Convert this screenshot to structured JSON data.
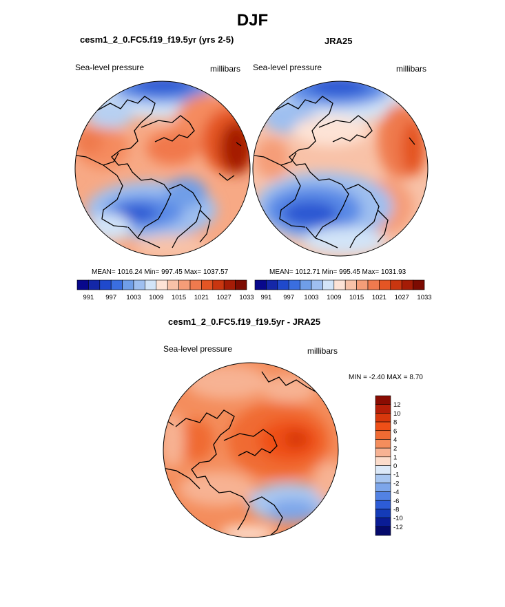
{
  "page": {
    "main_title": "DJF",
    "top_left_title": "cesm1_2_0.FC5.f19_f19.5yr (yrs 2-5)",
    "top_right_title": "JRA25",
    "bottom_title": "cesm1_2_0.FC5.f19_f19.5yr - JRA25"
  },
  "panels": {
    "model": {
      "variable": "Sea-level pressure",
      "units": "millibars",
      "stats": "MEAN= 1016.24  Min= 997.45  Max= 1037.57"
    },
    "obs": {
      "variable": "Sea-level pressure",
      "units": "millibars",
      "stats": "MEAN= 1012.71  Min= 995.45  Max= 1031.93"
    },
    "diff": {
      "variable": "Sea-level pressure",
      "units": "millibars",
      "stats": "MIN =  -2.40 MAX =   8.70"
    }
  },
  "colorbars": {
    "abs": {
      "labels": [
        "991",
        "997",
        "1003",
        "1009",
        "1015",
        "1021",
        "1027",
        "1033"
      ],
      "colors": [
        "#08088c",
        "#1427a8",
        "#1f49cc",
        "#3a6ee0",
        "#6f9ee8",
        "#9ebff0",
        "#d2e4f8",
        "#fde3d6",
        "#f8c2a8",
        "#f59d78",
        "#ef7a4e",
        "#e45524",
        "#c93610",
        "#a51c06",
        "#7c0b02"
      ]
    },
    "diff": {
      "labels": [
        "12",
        "10",
        "8",
        "6",
        "4",
        "2",
        "1",
        "0",
        "-1",
        "-2",
        "-4",
        "-6",
        "-8",
        "-10",
        "-12"
      ],
      "colors": [
        "#8a0c02",
        "#b51e08",
        "#d8380c",
        "#ef4f17",
        "#f06b33",
        "#f48d5c",
        "#f7b293",
        "#fcdccb",
        "#dce9f8",
        "#a8c6f0",
        "#7da6ea",
        "#5282e4",
        "#2d5cd6",
        "#143bb8",
        "#0a1c95",
        "#050a6b"
      ]
    }
  },
  "colors": {
    "coast": "#000000",
    "polar_high": "#c93610",
    "low_blue": "#1f49cc"
  },
  "chart_data": [
    {
      "type": "heatmap",
      "title": "cesm1_2_0.FC5.f19_f19.5yr (yrs 2-5)",
      "variable": "Sea-level pressure",
      "units": "millibars",
      "projection": "polar stereographic (north)",
      "mean": 1016.24,
      "min": 997.45,
      "max": 1037.57,
      "contour_levels": [
        991,
        994,
        997,
        1000,
        1003,
        1006,
        1009,
        1012,
        1015,
        1018,
        1021,
        1024,
        1027,
        1030,
        1033
      ]
    },
    {
      "type": "heatmap",
      "title": "JRA25",
      "variable": "Sea-level pressure",
      "units": "millibars",
      "projection": "polar stereographic (north)",
      "mean": 1012.71,
      "min": 995.45,
      "max": 1031.93,
      "contour_levels": [
        991,
        994,
        997,
        1000,
        1003,
        1006,
        1009,
        1012,
        1015,
        1018,
        1021,
        1024,
        1027,
        1030,
        1033
      ]
    },
    {
      "type": "heatmap",
      "title": "cesm1_2_0.FC5.f19_f19.5yr - JRA25",
      "variable": "Sea-level pressure",
      "units": "millibars",
      "projection": "polar stereographic (north)",
      "min": -2.4,
      "max": 8.7,
      "contour_levels": [
        -12,
        -10,
        -8,
        -6,
        -4,
        -2,
        -1,
        0,
        1,
        2,
        4,
        6,
        8,
        10,
        12
      ]
    }
  ]
}
